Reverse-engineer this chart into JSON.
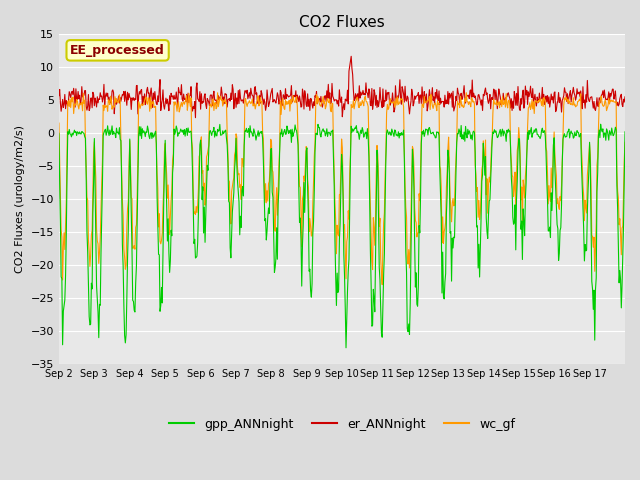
{
  "title": "CO2 Fluxes",
  "ylabel": "CO2 Fluxes (urology/m2/s)",
  "ylim": [
    -35,
    15
  ],
  "yticks": [
    -35,
    -30,
    -25,
    -20,
    -15,
    -10,
    -5,
    0,
    5,
    10,
    15
  ],
  "background_color": "#dcdcdc",
  "plot_bg_color": "#e8e8e8",
  "line_colors": {
    "gpp": "#00cc00",
    "er": "#cc0000",
    "wc": "#ff9900"
  },
  "legend_labels": [
    "gpp_ANNnight",
    "er_ANNnight",
    "wc_gf"
  ],
  "annotation_text": "EE_processed",
  "annotation_color": "#8b0000",
  "annotation_bg": "#ffffcc",
  "n_days": 16,
  "x_tick_labels": [
    "Sep 2",
    "Sep 3",
    "Sep 4",
    "Sep 5",
    "Sep 6",
    "Sep 7",
    "Sep 8",
    "Sep 9",
    "Sep 10",
    "Sep 11",
    "Sep 12",
    "Sep 13",
    "Sep 14",
    "Sep 15",
    "Sep 16",
    "Sep 17"
  ]
}
